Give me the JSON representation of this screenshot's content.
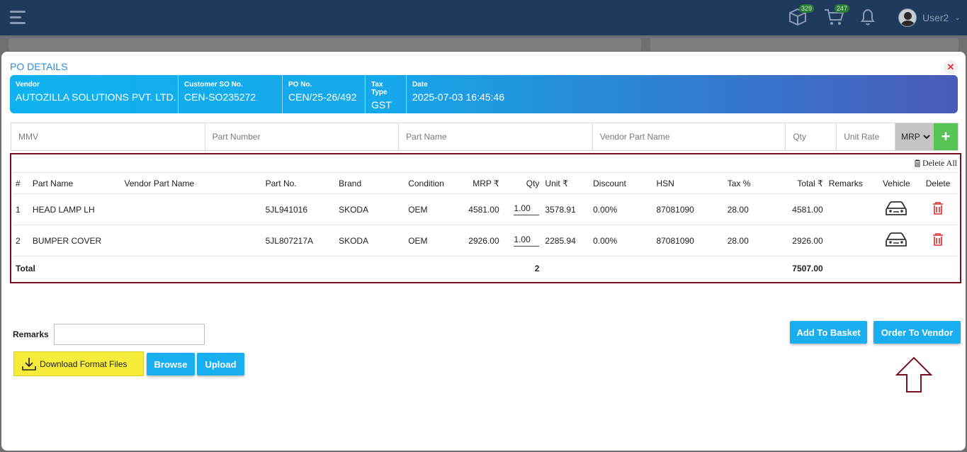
{
  "topbar": {
    "cube_badge": "329",
    "cart_badge": "247",
    "user_name": "User2"
  },
  "modal": {
    "title": "PO DETAILS",
    "close": "✕"
  },
  "info": [
    {
      "label": "Vendor",
      "value": "AUTOZILLA SOLUTIONS PVT. LTD."
    },
    {
      "label": "Customer SO No.",
      "value": "CEN-SO235272"
    },
    {
      "label": "PO No.",
      "value": "CEN/25-26/492"
    },
    {
      "label": "Tax Type",
      "value": "GST"
    },
    {
      "label": "Date",
      "value": "2025-07-03 16:45:46"
    }
  ],
  "search": {
    "mmv": "MMV",
    "part_number": "Part Number",
    "part_name": "Part Name",
    "vendor_part_name": "Vendor Part Name",
    "qty": "Qty",
    "unit_rate": "Unit Rate",
    "price_type": "MRP",
    "add": "+"
  },
  "table": {
    "delete_all": "Delete All",
    "headers": [
      "#",
      "Part Name",
      "Vendor Part Name",
      "Part No.",
      "Brand",
      "Condition",
      "MRP ₹",
      "Qty",
      "Unit ₹",
      "Discount",
      "HSN",
      "Tax %",
      "Total ₹",
      "Remarks",
      "Vehicle",
      "Delete"
    ],
    "rows": [
      {
        "no": "1",
        "part_name": "HEAD LAMP LH",
        "vendor_part_name": "",
        "part_no": "5JL941016",
        "brand": "SKODA",
        "condition": "OEM",
        "mrp": "4581.00",
        "qty": "1.00",
        "unit": "3578.91",
        "discount": "0.00%",
        "hsn": "87081090",
        "tax": "28.00",
        "total": "4581.00",
        "remarks": ""
      },
      {
        "no": "2",
        "part_name": "BUMPER COVER",
        "vendor_part_name": "",
        "part_no": "5JL807217A",
        "brand": "SKODA",
        "condition": "OEM",
        "mrp": "2926.00",
        "qty": "1.00",
        "unit": "2285.94",
        "discount": "0.00%",
        "hsn": "87081090",
        "tax": "28.00",
        "total": "2926.00",
        "remarks": ""
      }
    ],
    "total_label": "Total",
    "total_qty": "2",
    "total_amount": "7507.00"
  },
  "footer": {
    "remarks_label": "Remarks",
    "remarks_value": "",
    "download": "Download Format Files",
    "browse": "Browse",
    "upload": "Upload",
    "add_to_basket": "Add To Basket",
    "order_to_vendor": "Order To Vendor"
  }
}
